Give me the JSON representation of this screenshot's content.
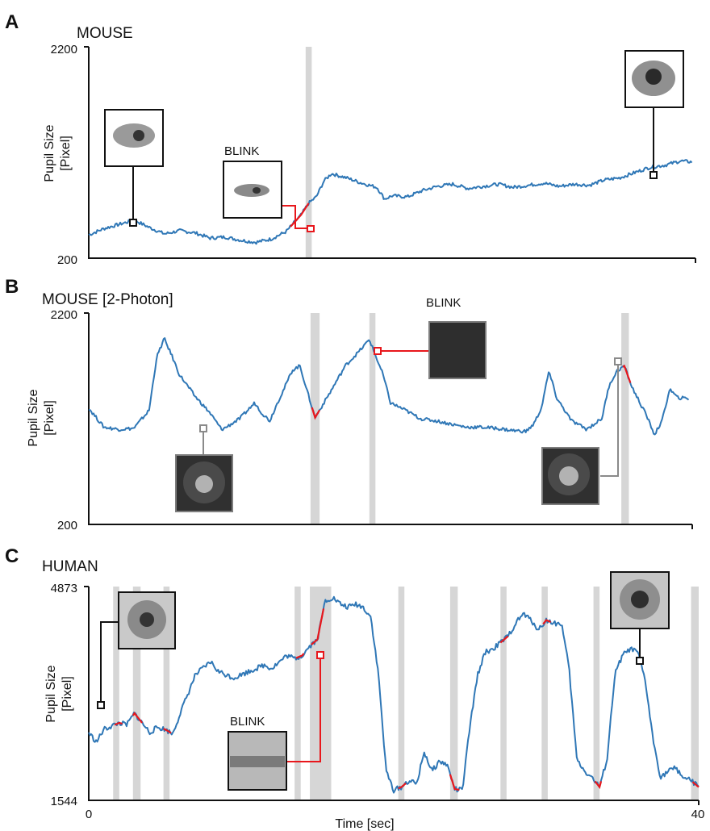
{
  "figure": {
    "x_label": "Time [sec]",
    "x_ticks": [
      "0",
      "40"
    ]
  },
  "chart_data": [
    {
      "type": "line",
      "panel": "A",
      "title": "MOUSE",
      "ylabel": [
        "Pupil Size",
        "[Pixel]"
      ],
      "ylim": [
        200,
        2200
      ],
      "y_tick_labels": [
        "2200",
        "200"
      ],
      "xlim": [
        0,
        40
      ],
      "annotation": "BLINK",
      "blink_periods_sec": [
        [
          14.3,
          14.7
        ]
      ],
      "series": [
        {
          "name": "",
          "x": [
            0,
            1,
            2,
            3,
            4,
            5,
            6,
            7,
            8,
            9,
            10,
            11,
            12,
            13,
            14,
            14.5,
            15,
            15.5,
            16,
            17,
            18,
            19,
            19.5,
            20,
            21,
            22,
            23,
            24,
            25,
            26,
            27,
            28,
            29,
            30,
            31,
            32,
            33,
            34,
            35,
            36,
            37,
            38,
            39,
            39.8
          ],
          "values": [
            420,
            480,
            520,
            560,
            490,
            430,
            460,
            440,
            390,
            400,
            370,
            350,
            380,
            450,
            610,
            720,
            780,
            930,
            1000,
            960,
            910,
            870,
            760,
            790,
            780,
            840,
            880,
            900,
            860,
            880,
            900,
            870,
            890,
            910,
            880,
            900,
            890,
            940,
            960,
            1010,
            1060,
            1080,
            1120,
            1110
          ]
        }
      ],
      "blink_segments": [
        [
          13.3,
          14.5
        ]
      ]
    },
    {
      "type": "line",
      "panel": "B",
      "title": "MOUSE [2-Photon]",
      "ylabel": [
        "Pupil Size",
        "[Pixel]"
      ],
      "ylim": [
        200,
        2200
      ],
      "y_tick_labels": [
        "2200",
        "200"
      ],
      "xlim": [
        0,
        40
      ],
      "annotation": "BLINK",
      "blink_periods_sec": [
        [
          14.7,
          15.3
        ],
        [
          18.6,
          19.0
        ],
        [
          35.3,
          35.8
        ]
      ],
      "series": [
        {
          "name": "",
          "x": [
            0,
            1,
            2,
            3,
            4,
            4.5,
            5,
            5.5,
            6,
            7,
            8,
            8.8,
            9,
            10,
            11,
            11.5,
            12,
            12.5,
            13,
            13.5,
            14,
            14.5,
            15,
            16,
            17,
            18,
            18.6,
            19,
            19.5,
            20,
            21,
            22,
            23,
            24,
            25,
            26,
            27,
            28,
            29,
            29.5,
            30,
            30.5,
            31,
            32,
            33,
            34,
            34.5,
            35,
            35.5,
            36,
            37,
            37.5,
            38,
            38.5,
            39,
            39.8
          ],
          "values": [
            1300,
            1120,
            1100,
            1110,
            1280,
            1780,
            1960,
            1800,
            1620,
            1420,
            1260,
            1100,
            1110,
            1200,
            1350,
            1250,
            1180,
            1350,
            1500,
            1660,
            1700,
            1450,
            1210,
            1450,
            1700,
            1850,
            1950,
            1800,
            1620,
            1350,
            1280,
            1200,
            1180,
            1150,
            1120,
            1120,
            1110,
            1090,
            1080,
            1150,
            1300,
            1650,
            1400,
            1180,
            1100,
            1200,
            1520,
            1650,
            1700,
            1500,
            1220,
            1050,
            1180,
            1480,
            1400,
            1390
          ]
        }
      ],
      "blink_segments": [
        [
          14.8,
          15.3
        ],
        [
          35.4,
          35.9
        ]
      ]
    },
    {
      "type": "line",
      "panel": "C",
      "title": "HUMAN",
      "ylabel": [
        "Pupil Size",
        "[Pixel]"
      ],
      "ylim": [
        1544,
        4873
      ],
      "y_tick_labels": [
        "4873",
        "1544"
      ],
      "xlim": [
        0,
        40
      ],
      "annotation": "BLINK",
      "blink_periods_sec": [
        [
          1.6,
          2.0
        ],
        [
          2.9,
          3.4
        ],
        [
          4.9,
          5.3
        ],
        [
          13.5,
          13.9
        ],
        [
          14.5,
          15.9
        ],
        [
          20.3,
          20.7
        ],
        [
          23.7,
          24.2
        ],
        [
          27.0,
          27.4
        ],
        [
          29.7,
          30.1
        ],
        [
          33.1,
          33.5
        ],
        [
          39.5,
          40.0
        ]
      ],
      "series": [
        {
          "name": "",
          "x": [
            0,
            0.5,
            1,
            1.5,
            2,
            2.5,
            3,
            3.5,
            4,
            4.5,
            5,
            5.5,
            6,
            6.5,
            7,
            7.5,
            8,
            8.5,
            9,
            9.5,
            10,
            10.5,
            11,
            11.5,
            12,
            12.5,
            13,
            13.5,
            14,
            14.5,
            15,
            15.5,
            16,
            16.5,
            17,
            17.5,
            18,
            18.5,
            19,
            19.5,
            20,
            20.5,
            21,
            21.5,
            22,
            22.5,
            23,
            23.5,
            24,
            24.5,
            25,
            25.5,
            26,
            26.5,
            27,
            27.5,
            28,
            28.5,
            29,
            29.5,
            30,
            30.5,
            31,
            31.5,
            32,
            32.5,
            33,
            33.5,
            34,
            34.5,
            35,
            35.5,
            36,
            36.5,
            37,
            37.5,
            38,
            38.5,
            39,
            39.5,
            40
          ],
          "values": [
            2600,
            2450,
            2650,
            2700,
            2750,
            2720,
            2900,
            2750,
            2600,
            2680,
            2650,
            2580,
            2900,
            3200,
            3500,
            3600,
            3700,
            3550,
            3500,
            3450,
            3500,
            3550,
            3600,
            3650,
            3600,
            3700,
            3800,
            3750,
            3800,
            3950,
            4050,
            4650,
            4700,
            4600,
            4550,
            4600,
            4550,
            4400,
            3500,
            2000,
            1700,
            1750,
            1850,
            1800,
            2300,
            2000,
            2150,
            2100,
            1720,
            1700,
            2700,
            3500,
            3850,
            3900,
            4000,
            4100,
            4300,
            4450,
            4350,
            4200,
            4350,
            4300,
            4300,
            3600,
            2200,
            2000,
            1900,
            1750,
            2200,
            3500,
            3800,
            3900,
            3850,
            3400,
            2500,
            1900,
            2000,
            2050,
            1900,
            1850,
            1750
          ]
        }
      ],
      "blink_segments": [
        [
          1.7,
          2.2
        ],
        [
          2.9,
          3.5
        ],
        [
          4.9,
          5.4
        ],
        [
          13.6,
          14.1
        ],
        [
          14.6,
          15.4
        ],
        [
          20.3,
          20.8
        ],
        [
          23.7,
          24.3
        ],
        [
          27.0,
          27.5
        ],
        [
          29.8,
          30.3
        ],
        [
          33.2,
          33.6
        ],
        [
          39.6,
          40.0
        ]
      ]
    }
  ]
}
